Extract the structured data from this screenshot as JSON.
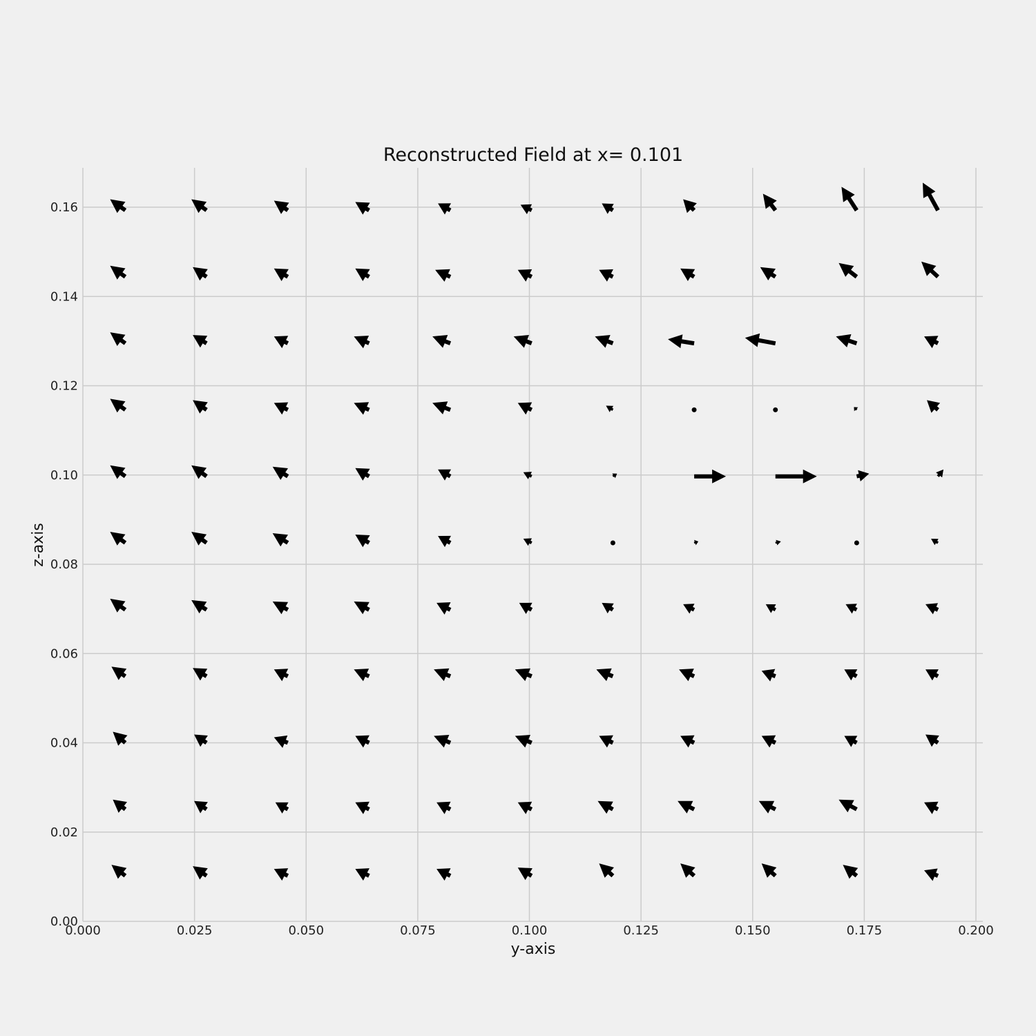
{
  "chart_data": {
    "type": "quiver",
    "title": "Reconstructed Field at x= 0.101",
    "xlabel": "y-axis",
    "ylabel": "z-axis",
    "xlim": [
      0.0,
      0.2
    ],
    "ylim": [
      0.0,
      0.16
    ],
    "xticks": [
      "0.000",
      "0.025",
      "0.050",
      "0.075",
      "0.100",
      "0.125",
      "0.150",
      "0.175",
      "0.200"
    ],
    "yticks": [
      "0.00",
      "0.02",
      "0.04",
      "0.06",
      "0.08",
      "0.10",
      "0.12",
      "0.14",
      "0.16"
    ],
    "grid": true,
    "x": [
      0.0095,
      0.0277,
      0.0459,
      0.0641,
      0.0823,
      0.1005,
      0.1187,
      0.1369,
      0.1551,
      0.1733,
      0.1915
    ],
    "y": [
      0.0102,
      0.0251,
      0.04,
      0.0549,
      0.0698,
      0.0848,
      0.0997,
      0.1146,
      0.1295,
      0.1444,
      0.1593
    ],
    "u": [
      [
        -1.0,
        -1.0,
        -1.0,
        -1.0,
        -1.0,
        -1.0,
        -1.0,
        -1.0,
        -1.0,
        -1.0,
        -1.0
      ],
      [
        -0.9,
        -0.9,
        -0.9,
        -1.0,
        -1.0,
        -1.0,
        -1.1,
        -1.2,
        -1.2,
        -1.3,
        -1.0
      ],
      [
        -0.9,
        -0.9,
        -1.0,
        -1.0,
        -1.2,
        -1.2,
        -1.0,
        -1.0,
        -1.0,
        -0.9,
        -0.9
      ],
      [
        -1.0,
        -1.0,
        -1.0,
        -1.1,
        -1.2,
        -1.2,
        -1.2,
        -1.1,
        -1.0,
        -0.9,
        -0.9
      ],
      [
        -1.1,
        -1.1,
        -1.1,
        -1.1,
        -1.0,
        -0.9,
        -0.8,
        -0.8,
        -0.7,
        -0.8,
        -0.9
      ],
      [
        -1.1,
        -1.1,
        -1.1,
        -1.0,
        -0.9,
        -0.6,
        0.0,
        0.3,
        0.4,
        0.0,
        -0.5
      ],
      [
        -1.1,
        -1.1,
        -1.1,
        -1.0,
        -0.9,
        -0.6,
        0.3,
        2.3,
        3.0,
        0.9,
        0.4
      ],
      [
        -1.1,
        -1.0,
        -1.0,
        -1.1,
        -1.3,
        -1.0,
        -0.5,
        0.0,
        0.0,
        -0.2,
        -0.8
      ],
      [
        -1.1,
        -1.0,
        -1.0,
        -1.1,
        -1.3,
        -1.3,
        -1.3,
        -1.9,
        -2.2,
        -1.5,
        -1.0
      ],
      [
        -1.1,
        -1.0,
        -1.0,
        -1.0,
        -1.1,
        -1.0,
        -1.0,
        -1.0,
        -1.1,
        -1.3,
        -1.2
      ],
      [
        -1.1,
        -1.1,
        -1.0,
        -1.0,
        -0.9,
        -0.8,
        -0.8,
        -0.8,
        -0.9,
        -1.1,
        -1.1
      ]
    ],
    "v": [
      [
        0.8,
        0.7,
        0.5,
        0.5,
        0.5,
        0.6,
        0.9,
        0.9,
        0.9,
        0.8,
        0.4
      ],
      [
        0.7,
        0.6,
        0.5,
        0.5,
        0.5,
        0.5,
        0.6,
        0.6,
        0.6,
        0.7,
        0.5
      ],
      [
        0.8,
        0.6,
        0.4,
        0.5,
        0.5,
        0.5,
        0.5,
        0.5,
        0.5,
        0.5,
        0.6
      ],
      [
        0.7,
        0.6,
        0.5,
        0.5,
        0.5,
        0.5,
        0.5,
        0.5,
        0.4,
        0.5,
        0.5
      ],
      [
        0.8,
        0.7,
        0.6,
        0.6,
        0.5,
        0.5,
        0.5,
        0.4,
        0.4,
        0.4,
        0.4
      ],
      [
        0.8,
        0.8,
        0.7,
        0.6,
        0.5,
        0.3,
        0.0,
        0.1,
        0.1,
        0.0,
        0.3
      ],
      [
        0.8,
        0.8,
        0.7,
        0.6,
        0.5,
        0.3,
        0.2,
        0.0,
        0.0,
        0.2,
        0.5
      ],
      [
        0.8,
        0.7,
        0.5,
        0.5,
        0.5,
        0.5,
        0.3,
        0.0,
        0.0,
        0.2,
        0.7
      ],
      [
        0.8,
        0.6,
        0.5,
        0.5,
        0.5,
        0.5,
        0.5,
        0.3,
        0.4,
        0.5,
        0.5
      ],
      [
        0.8,
        0.7,
        0.6,
        0.6,
        0.5,
        0.5,
        0.5,
        0.6,
        0.7,
        1.0,
        1.1
      ],
      [
        0.8,
        0.8,
        0.7,
        0.6,
        0.5,
        0.4,
        0.5,
        0.8,
        1.2,
        1.7,
        2.0
      ]
    ]
  }
}
